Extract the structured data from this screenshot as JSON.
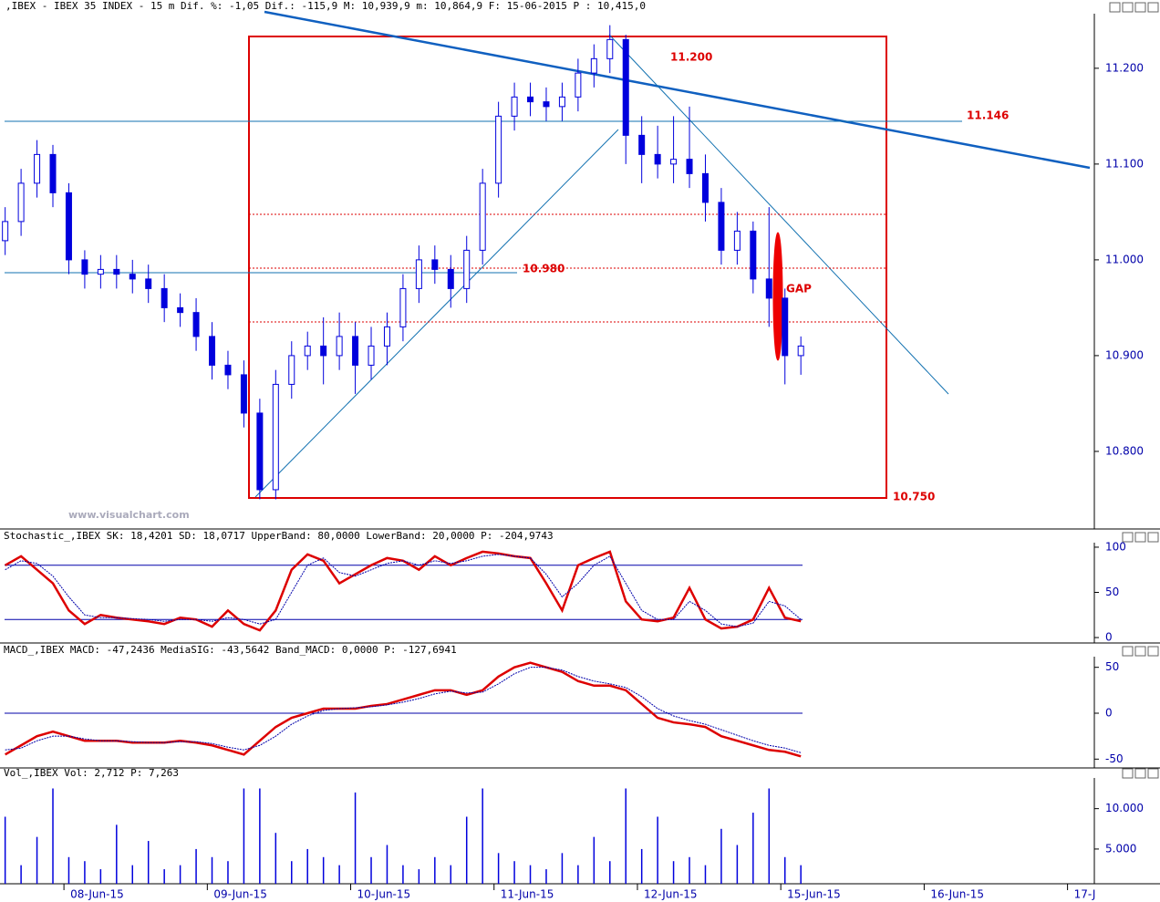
{
  "chart_data": [
    {
      "type": "candlestick",
      "title": ",IBEX - IBEX 35 INDEX -  15 m Dif. %: -1,05 Dif.: -115,9 M: 10,939,9 m: 10,864,9 F: 15-06-2015 P : 10,415,0",
      "color": "#0000dd",
      "x": [
        -0.41,
        -0.299,
        -0.188,
        -0.077,
        0.034,
        0.145,
        0.256,
        0.367,
        0.478,
        0.589,
        0.7,
        0.811,
        0.922,
        1.033,
        1.144,
        1.255,
        1.366,
        1.477,
        1.588,
        1.699,
        1.81,
        1.921,
        2.032,
        2.143,
        2.254,
        2.365,
        2.476,
        2.587,
        2.698,
        2.809,
        2.92,
        3.031,
        3.142,
        3.253,
        3.364,
        3.475,
        3.586,
        3.697,
        3.808,
        3.919,
        4.03,
        4.141,
        4.252,
        4.363,
        4.474,
        4.585,
        4.696,
        4.807,
        4.918,
        5.029,
        5.14
      ],
      "open": [
        11020,
        11040,
        11080,
        11110,
        11070,
        11000,
        10985,
        10990,
        10985,
        10980,
        10970,
        10950,
        10945,
        10920,
        10890,
        10880,
        10840,
        10760,
        10870,
        10900,
        10910,
        10900,
        10920,
        10890,
        10910,
        10930,
        10970,
        11000,
        10990,
        10970,
        11010,
        11080,
        11150,
        11170,
        11165,
        11160,
        11170,
        11195,
        11210,
        11230,
        11130,
        11110,
        11100,
        11105,
        11090,
        11060,
        11010,
        11030,
        10980,
        10960,
        10900
      ],
      "high": [
        11055,
        11095,
        11125,
        11120,
        11080,
        11010,
        11005,
        11005,
        11000,
        10995,
        10985,
        10965,
        10960,
        10935,
        10905,
        10895,
        10855,
        10885,
        10915,
        10925,
        10940,
        10945,
        10935,
        10930,
        10945,
        10985,
        11015,
        11015,
        11005,
        11025,
        11095,
        11165,
        11185,
        11185,
        11180,
        11185,
        11210,
        11225,
        11245,
        11235,
        11150,
        11140,
        11150,
        11160,
        11110,
        11075,
        11050,
        11040,
        11055,
        10970,
        10920
      ],
      "low": [
        11005,
        11025,
        11065,
        11055,
        10985,
        10970,
        10970,
        10970,
        10965,
        10955,
        10935,
        10930,
        10905,
        10875,
        10865,
        10825,
        10750,
        10750,
        10855,
        10885,
        10870,
        10885,
        10860,
        10875,
        10890,
        10915,
        10955,
        10975,
        10950,
        10955,
        10995,
        11065,
        11135,
        11150,
        11145,
        11145,
        11155,
        11180,
        11195,
        11100,
        11080,
        11085,
        11080,
        11075,
        11040,
        10995,
        10995,
        10965,
        10930,
        10870,
        10880
      ],
      "close": [
        11040,
        11080,
        11110,
        11070,
        11000,
        10985,
        10990,
        10985,
        10980,
        10970,
        10950,
        10945,
        10920,
        10890,
        10880,
        10840,
        10760,
        10870,
        10900,
        10910,
        10900,
        10920,
        10890,
        10910,
        10930,
        10970,
        11000,
        10990,
        10970,
        11010,
        11080,
        11150,
        11170,
        11165,
        11160,
        11170,
        11195,
        11210,
        11230,
        11130,
        11110,
        11100,
        11105,
        11090,
        11060,
        11010,
        11030,
        10980,
        10960,
        10900,
        10910
      ],
      "ylim": [
        10719,
        11257
      ],
      "yticks": [
        {
          "value": 10800,
          "label": "10.800"
        },
        {
          "value": 10900,
          "label": "10.900"
        },
        {
          "value": 11000,
          "label": "11.000"
        },
        {
          "value": 11100,
          "label": "11.100"
        },
        {
          "value": 11200,
          "label": "11.200"
        }
      ],
      "xlim": [
        -0.446,
        7.187
      ],
      "xticks": [
        {
          "value": 0,
          "label": "08-Jun-15"
        },
        {
          "value": 1,
          "label": "09-Jun-15"
        },
        {
          "value": 2,
          "label": "10-Jun-15"
        },
        {
          "value": 3,
          "label": "11-Jun-15"
        },
        {
          "value": 4,
          "label": "12-Jun-15"
        },
        {
          "value": 5,
          "label": "15-Jun-15"
        },
        {
          "value": 6,
          "label": "16-Jun-15"
        },
        {
          "value": 7,
          "label": "17-J"
        }
      ],
      "annotations": [
        "11.200",
        "11.146",
        "10.980",
        "10.750",
        "GAP"
      ],
      "watermark": "www.visualchart.com"
    },
    {
      "type": "line",
      "title": "Stochastic_,IBEX SK: 18,4201 SD: 18,0717 UpperBand: 80,0000 LowerBand: 20,0000 P: -204,9743",
      "series": [
        {
          "name": "SK",
          "color": "#dd0000",
          "values": [
            80,
            90,
            75,
            60,
            30,
            15,
            25,
            22,
            20,
            18,
            15,
            22,
            20,
            12,
            30,
            15,
            8,
            30,
            75,
            92,
            85,
            60,
            70,
            80,
            88,
            85,
            75,
            90,
            80,
            88,
            95,
            93,
            90,
            88,
            60,
            30,
            80,
            88,
            95,
            40,
            20,
            18,
            22,
            55,
            20,
            10,
            12,
            20,
            55,
            22,
            18
          ]
        },
        {
          "name": "SD",
          "color": "#0000aa",
          "values": [
            75,
            85,
            82,
            68,
            45,
            25,
            22,
            22,
            21,
            20,
            18,
            20,
            20,
            18,
            22,
            20,
            15,
            20,
            50,
            80,
            88,
            72,
            68,
            75,
            82,
            85,
            80,
            85,
            82,
            85,
            90,
            92,
            90,
            88,
            70,
            45,
            60,
            80,
            90,
            60,
            30,
            20,
            20,
            40,
            30,
            15,
            12,
            16,
            40,
            35,
            20
          ]
        }
      ],
      "bands": [
        80,
        20
      ],
      "ylim": [
        -6,
        105
      ],
      "yticks": [
        0,
        50,
        100
      ]
    },
    {
      "type": "line",
      "title": "MACD_,IBEX MACD: -47,2436 MediaSIG: -43,5642 Band_MACD: 0,0000 P: -127,6941",
      "series": [
        {
          "name": "MACD",
          "color": "#dd0000",
          "values": [
            -45,
            -35,
            -25,
            -20,
            -25,
            -30,
            -30,
            -30,
            -32,
            -32,
            -32,
            -30,
            -32,
            -35,
            -40,
            -45,
            -30,
            -15,
            -5,
            0,
            5,
            5,
            5,
            8,
            10,
            15,
            20,
            25,
            25,
            20,
            25,
            40,
            50,
            55,
            50,
            45,
            35,
            30,
            30,
            25,
            10,
            -5,
            -10,
            -12,
            -15,
            -25,
            -30,
            -35,
            -40,
            -42,
            -47
          ]
        },
        {
          "name": "MediaSIG",
          "color": "#0000aa",
          "values": [
            -40,
            -38,
            -30,
            -25,
            -25,
            -28,
            -30,
            -30,
            -31,
            -32,
            -32,
            -31,
            -31,
            -33,
            -37,
            -40,
            -35,
            -25,
            -12,
            -3,
            3,
            5,
            6,
            7,
            9,
            12,
            16,
            21,
            24,
            22,
            23,
            32,
            43,
            50,
            50,
            47,
            40,
            35,
            32,
            28,
            18,
            5,
            -3,
            -8,
            -12,
            -18,
            -24,
            -30,
            -35,
            -38,
            -43
          ]
        }
      ],
      "bands": [
        0
      ],
      "ylim": [
        -59.6,
        61.6
      ],
      "yticks": [
        -50,
        0,
        50
      ]
    },
    {
      "type": "bar",
      "title": "Vol_,IBEX Vol: 2,712 P: 7,263",
      "color": "#0000dd",
      "values": [
        9000,
        3000,
        6500,
        12500,
        4000,
        3500,
        2500,
        8000,
        3000,
        6000,
        2500,
        3000,
        5000,
        4000,
        3500,
        12500,
        12500,
        7000,
        3500,
        5000,
        4000,
        3000,
        12000,
        4000,
        5500,
        3000,
        2500,
        4000,
        3000,
        9000,
        12500,
        4500,
        3500,
        3000,
        2500,
        4500,
        3000,
        6500,
        3500,
        12500,
        5000,
        9000,
        3500,
        4000,
        3000,
        7500,
        5500,
        9500,
        12500,
        4000,
        3000
      ],
      "ylim": [
        700,
        13800
      ],
      "yticks": [
        {
          "value": 5000,
          "label": "5.000"
        },
        {
          "value": 10000,
          "label": "10.000"
        }
      ]
    }
  ]
}
